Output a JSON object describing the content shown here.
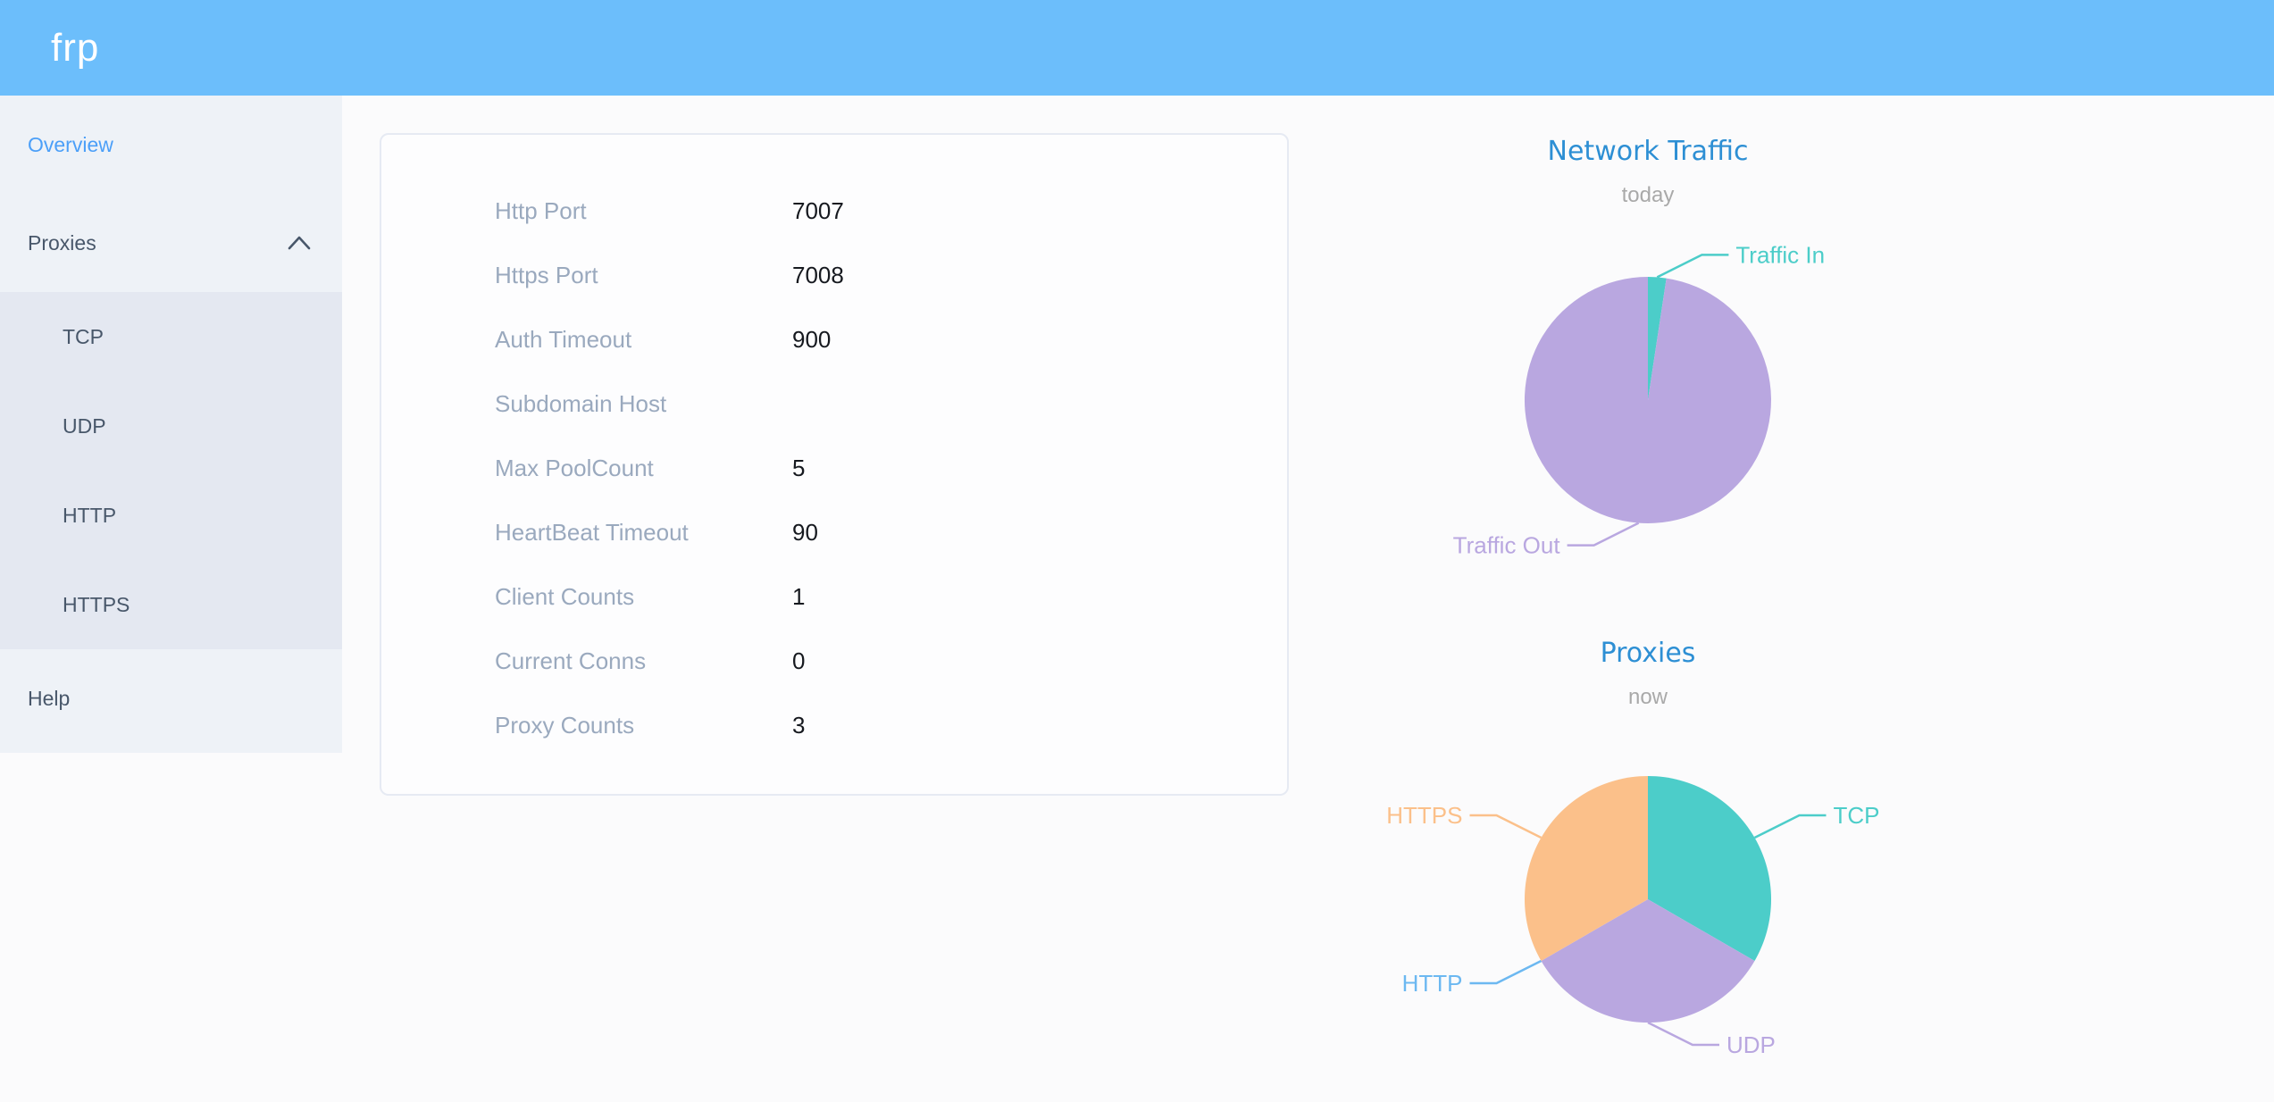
{
  "header": {
    "logo": "frp",
    "background_color": "#6CBEFB"
  },
  "sidebar": {
    "active_item": "Overview",
    "active_color": "#4B9FF8",
    "text_color": "#48576A",
    "menu": [
      {
        "id": "overview",
        "label": "Overview",
        "active": true
      },
      {
        "id": "proxies",
        "label": "Proxies",
        "expanded": true,
        "chevron_icon": "chevron-up-icon",
        "submenu": [
          {
            "id": "tcp",
            "label": "TCP"
          },
          {
            "id": "udp",
            "label": "UDP"
          },
          {
            "id": "http",
            "label": "HTTP"
          },
          {
            "id": "https",
            "label": "HTTPS"
          }
        ]
      },
      {
        "id": "help",
        "label": "Help",
        "active": false
      }
    ]
  },
  "overview_card": {
    "rows": [
      {
        "label": "Http Port",
        "value": "7007"
      },
      {
        "label": "Https Port",
        "value": "7008"
      },
      {
        "label": "Auth Timeout",
        "value": "900"
      },
      {
        "label": "Subdomain Host",
        "value": ""
      },
      {
        "label": "Max PoolCount",
        "value": "5"
      },
      {
        "label": "HeartBeat Timeout",
        "value": "90"
      },
      {
        "label": "Client Counts",
        "value": "1"
      },
      {
        "label": "Current Conns",
        "value": "0"
      },
      {
        "label": "Proxy Counts",
        "value": "3"
      }
    ]
  },
  "chart_data": [
    {
      "type": "pie",
      "title": "Network Traffic",
      "subtitle": "today",
      "legend_position": "callout-labels",
      "value_unit": "percent-of-circle (estimated from arc angles; no numeric labels shown)",
      "series": [
        {
          "name": "Traffic In",
          "value": 2.4,
          "color": "#4CCDC9"
        },
        {
          "name": "Traffic Out",
          "value": 97.6,
          "color": "#B9A7E0"
        }
      ]
    },
    {
      "type": "pie",
      "title": "Proxies",
      "subtitle": "now",
      "legend_position": "callout-labels",
      "value_unit": "proxy count (three equal slices; HTTP slice is zero-width but labeled)",
      "series": [
        {
          "name": "TCP",
          "value": 1,
          "color": "#4CCDC9"
        },
        {
          "name": "UDP",
          "value": 1,
          "color": "#B9A7E0"
        },
        {
          "name": "HTTP",
          "value": 0,
          "color": "#6CB8F1"
        },
        {
          "name": "HTTPS",
          "value": 1,
          "color": "#FBC08A"
        }
      ]
    }
  ]
}
